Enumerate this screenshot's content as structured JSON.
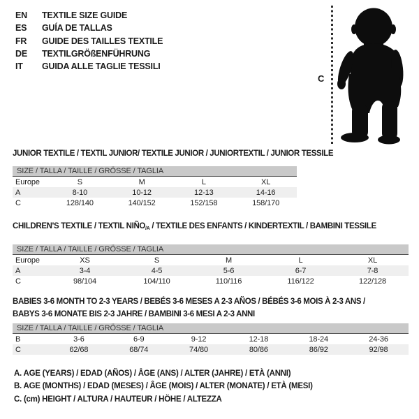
{
  "languages": [
    {
      "code": "EN",
      "label": "TEXTILE SIZE GUIDE"
    },
    {
      "code": "ES",
      "label": "GUÍA DE TALLAS"
    },
    {
      "code": "FR",
      "label": "GUIDE DES TAILLES TEXTILE"
    },
    {
      "code": "DE",
      "label": "TEXTILGRÖßENFÜHRUNG"
    },
    {
      "code": "IT",
      "label": "GUIDA ALLE TAGLIE TESSILI"
    }
  ],
  "figure": {
    "icon": "baby-silhouette",
    "measure_label": "C"
  },
  "tables": [
    {
      "title_lines": [
        [
          {
            "t": "JUNIOR TEXTILE / TEXTIL JUNIOR/ TEXTILE JUNIOR / JUNIORTEXTIL / JUNIOR TESSILE"
          }
        ]
      ],
      "size_header": "SIZE / TALLA / TAILLE / GRÖSSE / TAGLIA",
      "rows": [
        {
          "label": "Europe",
          "shaded": false,
          "values": [
            "S",
            "M",
            "L",
            "XL"
          ]
        },
        {
          "label": "A",
          "shaded": true,
          "values": [
            "8-10",
            "10-12",
            "12-13",
            "14-16"
          ]
        },
        {
          "label": "C",
          "shaded": false,
          "values": [
            "128/140",
            "140/152",
            "152/158",
            "158/170"
          ]
        }
      ]
    },
    {
      "title_lines": [
        [
          {
            "t": "CHILDREN'S TEXTILE / TEXTIL NIÑO"
          },
          {
            "t": "/A",
            "sub": true
          },
          {
            "t": " / TEXTILE DES ENFANTS / KINDERTEXTIL / BAMBINI TESSILE"
          }
        ]
      ],
      "size_header": "SIZE / TALLA / TAILLE / GRÖSSE / TAGLIA",
      "rows": [
        {
          "label": "Europe",
          "shaded": false,
          "values": [
            "XS",
            "S",
            "M",
            "L",
            "XL"
          ]
        },
        {
          "label": "A",
          "shaded": true,
          "values": [
            "3-4",
            "4-5",
            "5-6",
            "6-7",
            "7-8"
          ]
        },
        {
          "label": "C",
          "shaded": false,
          "values": [
            "98/104",
            "104/110",
            "110/116",
            "116/122",
            "122/128"
          ]
        }
      ]
    },
    {
      "title_lines": [
        [
          {
            "t": "BABIES 3-6 MONTH TO 2-3 YEARS / BEBÉS 3-6 MESES A 2-3 AÑOS / BÉBÉS 3-6 MOIS À 2-3 ANS /"
          }
        ],
        [
          {
            "t": "BABYS 3-6 MONATE BIS 2-3 JAHRE / BAMBINI 3-6 MESI A 2-3 ANNI"
          }
        ]
      ],
      "size_header": "SIZE / TALLA / TAILLE / GRÖSSE / TAGLIA",
      "rows": [
        {
          "label": "B",
          "shaded": false,
          "values": [
            "3-6",
            "6-9",
            "9-12",
            "12-18",
            "18-24",
            "24-36"
          ]
        },
        {
          "label": "C",
          "shaded": true,
          "values": [
            "62/68",
            "68/74",
            "74/80",
            "80/86",
            "86/92",
            "92/98"
          ]
        }
      ]
    }
  ],
  "legend": {
    "lines": [
      "A. AGE (YEARS) / EDAD (AÑOS) / ÂGE (ANS) / ALTER (JAHRE) / ETÀ (ANNI)",
      "B. AGE (MONTHS) / EDAD (MESES) / ÂGE (MOIS) / ALTER (MONATE) / ETÀ (MESI)",
      "C. (cm) HEIGHT / ALTURA / HAUTEUR / HÖHE / ALTEZZA"
    ]
  },
  "colors": {
    "header_band": "#c9c9c9",
    "shaded_row": "#efefef",
    "text": "#1b1b1b",
    "band_border": "#4d4d4d",
    "silhouette": "#0d0d0d"
  }
}
